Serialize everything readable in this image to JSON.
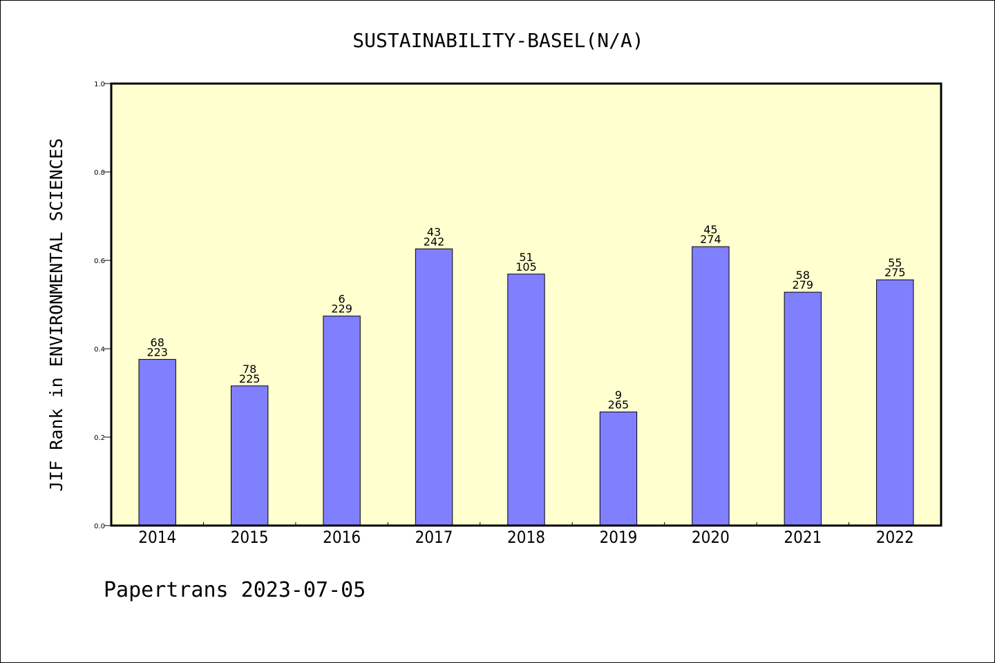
{
  "chart_data": {
    "type": "bar",
    "title": "SUSTAINABILITY-BASEL(N/A)",
    "ylabel": "JIF Rank in ENVIRONMENTAL SCIENCES",
    "xlabel": "",
    "categories": [
      "2014",
      "2015",
      "2016",
      "2017",
      "2018",
      "2019",
      "2020",
      "2021",
      "2022"
    ],
    "values": [
      0.376,
      0.316,
      0.474,
      0.626,
      0.569,
      0.257,
      0.631,
      0.528,
      0.556
    ],
    "annotations": [
      {
        "top": "68",
        "bottom": "223"
      },
      {
        "top": "78",
        "bottom": "225"
      },
      {
        "top": "6",
        "bottom": "229"
      },
      {
        "top": "43",
        "bottom": "242"
      },
      {
        "top": "51",
        "bottom": "105"
      },
      {
        "top": "9",
        "bottom": "265"
      },
      {
        "top": "45",
        "bottom": "274"
      },
      {
        "top": "58",
        "bottom": "279"
      },
      {
        "top": "55",
        "bottom": "275"
      }
    ],
    "ylim": [
      0.0,
      1.0
    ],
    "yticks": [
      "0.0",
      "0.2",
      "0.4",
      "0.6",
      "0.8",
      "1.0"
    ],
    "grid": false,
    "colors": {
      "plot_background": "#ffffd0",
      "bar_fill": "#8080ff",
      "bar_edge": "#000000"
    }
  },
  "footer": {
    "text": "Papertrans 2023-07-05"
  }
}
